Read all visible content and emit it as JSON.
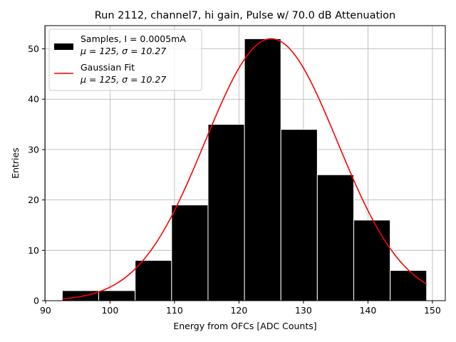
{
  "chart_data": {
    "type": "bar",
    "title": "Run 2112, channel7, hi gain, Pulse w/ 70.0 dB Attenuation",
    "xlabel": "Energy from OFCs [ADC Counts]",
    "ylabel": "Entries",
    "xlim": [
      89.9,
      152.0
    ],
    "ylim": [
      0,
      54.6
    ],
    "xticks": [
      90,
      100,
      110,
      120,
      130,
      140,
      150
    ],
    "yticks": [
      0,
      10,
      20,
      30,
      40,
      50
    ],
    "grid": true,
    "legend_position": "top-left",
    "bins": {
      "edges": [
        92.6,
        98.25,
        103.9,
        109.55,
        115.2,
        120.85,
        126.5,
        132.15,
        137.8,
        143.45,
        149.1
      ],
      "counts": [
        2,
        2,
        8,
        19,
        35,
        52,
        34,
        25,
        16,
        6
      ]
    },
    "fit": {
      "mu": 125,
      "sigma": 10.27,
      "amplitude": 52,
      "x_range": [
        92.6,
        149.1
      ]
    },
    "series": [
      {
        "name": "Samples, I = 0.0005mA",
        "stats": "μ = 125, σ = 10.27",
        "color": "#000000",
        "kind": "histogram"
      },
      {
        "name": "Gaussian Fit",
        "stats": "μ = 125, σ = 10.27",
        "color": "#ff0000",
        "kind": "line"
      }
    ]
  }
}
